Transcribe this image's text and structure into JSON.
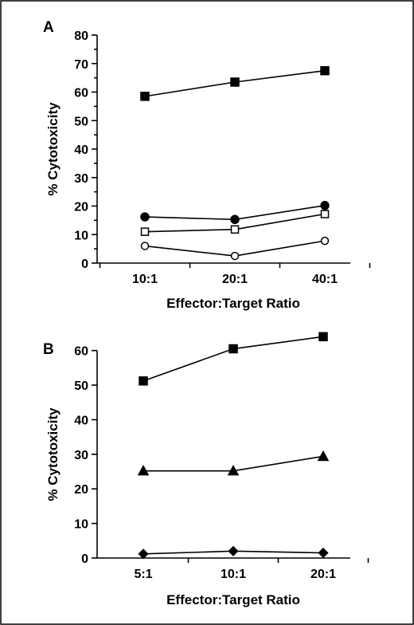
{
  "chart_data": [
    {
      "panel": "A",
      "type": "line",
      "title": "",
      "xlabel": "Effector:Target Ratio",
      "ylabel": "% Cytotoxicity",
      "categories": [
        "10:1",
        "20:1",
        "40:1"
      ],
      "ylim": [
        0,
        80
      ],
      "yticks": [
        0,
        10,
        20,
        30,
        40,
        50,
        60,
        70,
        80
      ],
      "grid": false,
      "legend": "none",
      "series": [
        {
          "marker": "filled-square",
          "values": [
            58.5,
            63.5,
            67.5
          ]
        },
        {
          "marker": "filled-circle",
          "values": [
            16.2,
            15.3,
            20.2
          ]
        },
        {
          "marker": "open-square",
          "values": [
            11.0,
            11.8,
            17.2
          ]
        },
        {
          "marker": "open-circle",
          "values": [
            6.0,
            2.5,
            7.8
          ]
        }
      ]
    },
    {
      "panel": "B",
      "type": "line",
      "title": "",
      "xlabel": "Effector:Target Ratio",
      "ylabel": "% Cytotoxicity",
      "categories": [
        "5:1",
        "10:1",
        "20:1"
      ],
      "ylim": [
        0,
        65
      ],
      "yticks": [
        0,
        10,
        20,
        30,
        40,
        50,
        60
      ],
      "grid": false,
      "legend": "none",
      "series": [
        {
          "marker": "filled-square",
          "values": [
            51.2,
            60.5,
            64.0
          ]
        },
        {
          "marker": "filled-triangle",
          "values": [
            25.2,
            25.2,
            29.4
          ]
        },
        {
          "marker": "filled-diamond",
          "values": [
            1.2,
            2.0,
            1.5
          ]
        }
      ]
    }
  ]
}
